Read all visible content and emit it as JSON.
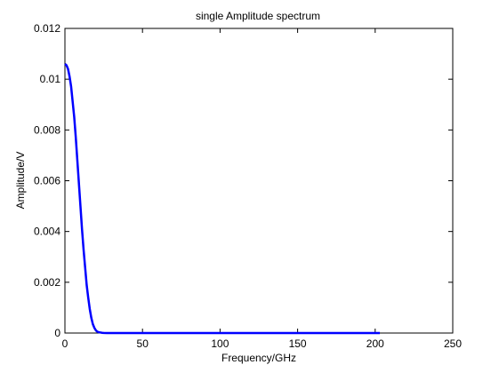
{
  "chart_data": {
    "type": "line",
    "title": "single Amplitude spectrum",
    "xlabel": "Frequency/GHz",
    "ylabel": "Amplitude/V",
    "xlim": [
      0,
      250
    ],
    "ylim": [
      0,
      0.012
    ],
    "x_ticks": [
      "0",
      "50",
      "100",
      "150",
      "200",
      "250"
    ],
    "y_ticks": [
      "0",
      "0.002",
      "0.004",
      "0.006",
      "0.008",
      "0.01",
      "0.012"
    ],
    "grid": false,
    "legend": "none",
    "line_color": "#0000ff",
    "series": [
      {
        "x": [
          0,
          1,
          2,
          3,
          4,
          5,
          6,
          7,
          8,
          9,
          10,
          11,
          12,
          13,
          14,
          15,
          16,
          17,
          18,
          19,
          20,
          21,
          22,
          23,
          24,
          25,
          27,
          30,
          35,
          40,
          60,
          80,
          100,
          120,
          140,
          160,
          180,
          200,
          203
        ],
        "y": [
          0.0106,
          0.01055,
          0.0104,
          0.0101,
          0.0097,
          0.0091,
          0.0085,
          0.0077,
          0.0068,
          0.0059,
          0.005,
          0.0041,
          0.0033,
          0.0026,
          0.0019,
          0.0014,
          0.00095,
          0.0006,
          0.00035,
          0.0002,
          0.0001,
          5e-05,
          3e-05,
          2e-05,
          1e-05,
          5e-06,
          2e-06,
          1e-06,
          5e-07,
          2e-07,
          1e-07,
          5e-08,
          5e-08,
          5e-08,
          5e-08,
          5e-08,
          5e-08,
          5e-08,
          5e-08
        ]
      }
    ]
  }
}
